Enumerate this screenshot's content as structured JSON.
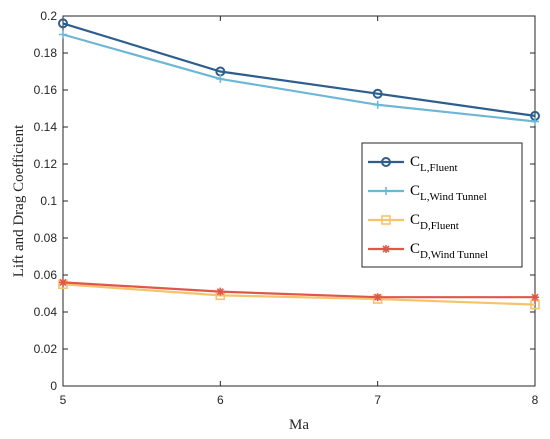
{
  "chart_data": {
    "type": "line",
    "xlabel": "Ma",
    "ylabel": "Lift and Drag Coefficient",
    "xlim": [
      5,
      8
    ],
    "ylim": [
      0,
      0.2
    ],
    "xticks": [
      "5",
      "6",
      "7",
      "8"
    ],
    "yticks": [
      "0",
      "0.02",
      "0.04",
      "0.06",
      "0.08",
      "0.1",
      "0.12",
      "0.14",
      "0.16",
      "0.18",
      "0.2"
    ],
    "x": [
      5,
      6,
      7,
      8
    ],
    "grid": false,
    "legend_position": "center-right",
    "series": [
      {
        "name": "C_L,Fluent",
        "main": "C",
        "sub": "L,Fluent",
        "values": [
          0.196,
          0.17,
          0.158,
          0.146
        ],
        "color": "#2e5e8e",
        "marker": "circle"
      },
      {
        "name": "C_L,Wind Tunnel",
        "main": "C",
        "sub": "L,Wind Tunnel",
        "values": [
          0.19,
          0.166,
          0.152,
          0.143
        ],
        "color": "#6db7d6",
        "marker": "plus"
      },
      {
        "name": "C_D,Fluent",
        "main": "C",
        "sub": "D,Fluent",
        "values": [
          0.055,
          0.049,
          0.047,
          0.044
        ],
        "color": "#f5c36b",
        "marker": "square"
      },
      {
        "name": "C_D,Wind Tunnel",
        "main": "C",
        "sub": "D,Wind Tunnel",
        "values": [
          0.056,
          0.051,
          0.048,
          0.048
        ],
        "color": "#e0574a",
        "marker": "star"
      }
    ]
  }
}
